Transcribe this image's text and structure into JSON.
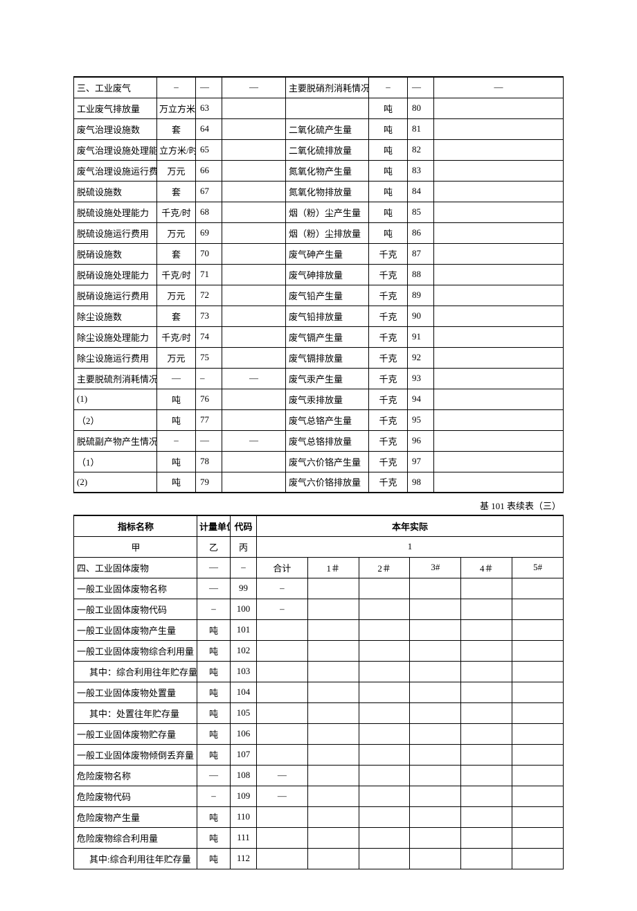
{
  "table1": {
    "rows": [
      {
        "l_name": "三、工业废气",
        "l_unit": "–",
        "l_code": "—",
        "l_val": "—",
        "r_name": "主要脱硝剂消耗情况",
        "r_unit": "–",
        "r_code": "—",
        "r_val": "—"
      },
      {
        "l_name": "工业废气排放量",
        "l_unit": "万立方米",
        "l_code": "63",
        "l_val": "",
        "r_name": "",
        "r_unit": "吨",
        "r_code": "80",
        "r_val": ""
      },
      {
        "l_name": "废气治理设施数",
        "l_unit": "套",
        "l_code": "64",
        "l_val": "",
        "r_name": "二氧化硫产生量",
        "r_unit": "吨",
        "r_code": "81",
        "r_val": ""
      },
      {
        "l_name": "废气治理设施处理能力",
        "l_unit": "立方米/时",
        "l_code": "65",
        "l_val": "",
        "r_name": "二氧化硫排放量",
        "r_unit": "吨",
        "r_code": "82",
        "r_val": ""
      },
      {
        "l_name": "废气治理设施运行费用",
        "l_unit": "万元",
        "l_code": "66",
        "l_val": "",
        "r_name": "氮氧化物产生量",
        "r_unit": "吨",
        "r_code": "83",
        "r_val": ""
      },
      {
        "l_name": "脱硫设施数",
        "l_unit": "套",
        "l_code": "67",
        "l_val": "",
        "r_name": "氮氧化物排放量",
        "r_unit": "吨",
        "r_code": "84",
        "r_val": ""
      },
      {
        "l_name": "脱硫设施处理能力",
        "l_unit": "千克/时",
        "l_code": "68",
        "l_val": "",
        "r_name": "烟（粉）尘产生量",
        "r_unit": "吨",
        "r_code": "85",
        "r_val": ""
      },
      {
        "l_name": "脱硫设施运行费用",
        "l_unit": "万元",
        "l_code": "69",
        "l_val": "",
        "r_name": "烟（粉）尘排放量",
        "r_unit": "吨",
        "r_code": "86",
        "r_val": ""
      },
      {
        "l_name": "脱硝设施数",
        "l_unit": "套",
        "l_code": "70",
        "l_val": "",
        "r_name": "废气砷产生量",
        "r_unit": "千克",
        "r_code": "87",
        "r_val": ""
      },
      {
        "l_name": "脱硝设施处理能力",
        "l_unit": "千克/时",
        "l_code": "71",
        "l_val": "",
        "r_name": "废气砷排放量",
        "r_unit": "千克",
        "r_code": "88",
        "r_val": ""
      },
      {
        "l_name": "脱硝设施运行费用",
        "l_unit": "万元",
        "l_code": "72",
        "l_val": "",
        "r_name": "废气铅产生量",
        "r_unit": "千克",
        "r_code": "89",
        "r_val": ""
      },
      {
        "l_name": "除尘设施数",
        "l_unit": "套",
        "l_code": "73",
        "l_val": "",
        "r_name": "废气铅排放量",
        "r_unit": "千克",
        "r_code": "90",
        "r_val": ""
      },
      {
        "l_name": "除尘设施处理能力",
        "l_unit": "千克/时",
        "l_code": "74",
        "l_val": "",
        "r_name": "废气镉产生量",
        "r_unit": "千克",
        "r_code": "91",
        "r_val": ""
      },
      {
        "l_name": "除尘设施运行费用",
        "l_unit": "万元",
        "l_code": "75",
        "l_val": "",
        "r_name": "废气镉排放量",
        "r_unit": "千克",
        "r_code": "92",
        "r_val": ""
      },
      {
        "l_name": "主要脱硫剂消耗情况",
        "l_unit": "—",
        "l_code": "–",
        "l_val": "—",
        "r_name": "废气汞产生量",
        "r_unit": "千克",
        "r_code": "93",
        "r_val": ""
      },
      {
        "l_name": "(1)",
        "l_unit": "吨",
        "l_code": "76",
        "l_val": "",
        "r_name": "废气汞排放量",
        "r_unit": "千克",
        "r_code": "94",
        "r_val": ""
      },
      {
        "l_name": "（2）",
        "l_unit": "吨",
        "l_code": "77",
        "l_val": "",
        "r_name": "废气总铬产生量",
        "r_unit": "千克",
        "r_code": "95",
        "r_val": ""
      },
      {
        "l_name": "脱硫副产物产生情况",
        "l_unit": "–",
        "l_code": "—",
        "l_val": "—",
        "r_name": "废气总铬排放量",
        "r_unit": "千克",
        "r_code": "96",
        "r_val": ""
      },
      {
        "l_name": "（1）",
        "l_unit": "吨",
        "l_code": "78",
        "l_val": "",
        "r_name": "废气六价铬产生量",
        "r_unit": "千克",
        "r_code": "97",
        "r_val": ""
      },
      {
        "l_name": "(2)",
        "l_unit": "吨",
        "l_code": "79",
        "l_val": "",
        "r_name": "废气六价铬排放量",
        "r_unit": "千克",
        "r_code": "98",
        "r_val": ""
      }
    ]
  },
  "caption2": "基 101 表续表（三）",
  "table2": {
    "head": {
      "name": "指标名称",
      "unit": "计量单位",
      "code": "代码",
      "actual": "本年实际",
      "sub_name": "甲",
      "sub_unit": "乙",
      "sub_code": "丙",
      "sub_actual": "1"
    },
    "section_row": {
      "name": "四、工业固体废物",
      "unit": "—",
      "code": "–",
      "cols": [
        "合计",
        "1＃",
        "2＃",
        "3#",
        "4＃",
        "5#"
      ]
    },
    "rows": [
      {
        "name": "一般工业固体废物名称",
        "unit": "—",
        "code": "99",
        "first": "–",
        "indent": false
      },
      {
        "name": "一般工业固体废物代码",
        "unit": "–",
        "code": "100",
        "first": "–",
        "indent": false
      },
      {
        "name": "一般工业固体废物产生量",
        "unit": "吨",
        "code": "101",
        "first": "",
        "indent": false
      },
      {
        "name": "一般工业固体废物综合利用量",
        "unit": "吨",
        "code": "102",
        "first": "",
        "indent": false
      },
      {
        "name": "其中：综合利用往年贮存量",
        "unit": "吨",
        "code": "103",
        "first": "",
        "indent": true
      },
      {
        "name": "一般工业固体废物处置量",
        "unit": "吨",
        "code": "104",
        "first": "",
        "indent": false
      },
      {
        "name": "其中：处置往年贮存量",
        "unit": "吨",
        "code": "105",
        "first": "",
        "indent": true
      },
      {
        "name": "一般工业固体废物贮存量",
        "unit": "吨",
        "code": "106",
        "first": "",
        "indent": false
      },
      {
        "name": "一般工业固体废物倾倒丢弃量",
        "unit": "吨",
        "code": "107",
        "first": "",
        "indent": false
      },
      {
        "name": "危险废物名称",
        "unit": "—",
        "code": "108",
        "first": "—",
        "indent": false
      },
      {
        "name": "危险废物代码",
        "unit": "–",
        "code": "109",
        "first": "—",
        "indent": false
      },
      {
        "name": "危险废物产生量",
        "unit": "吨",
        "code": "110",
        "first": "",
        "indent": false
      },
      {
        "name": "危险废物综合利用量",
        "unit": "吨",
        "code": "111",
        "first": "",
        "indent": false
      },
      {
        "name": "其中:综合利用往年贮存量",
        "unit": "吨",
        "code": "112",
        "first": "",
        "indent": true
      }
    ]
  }
}
